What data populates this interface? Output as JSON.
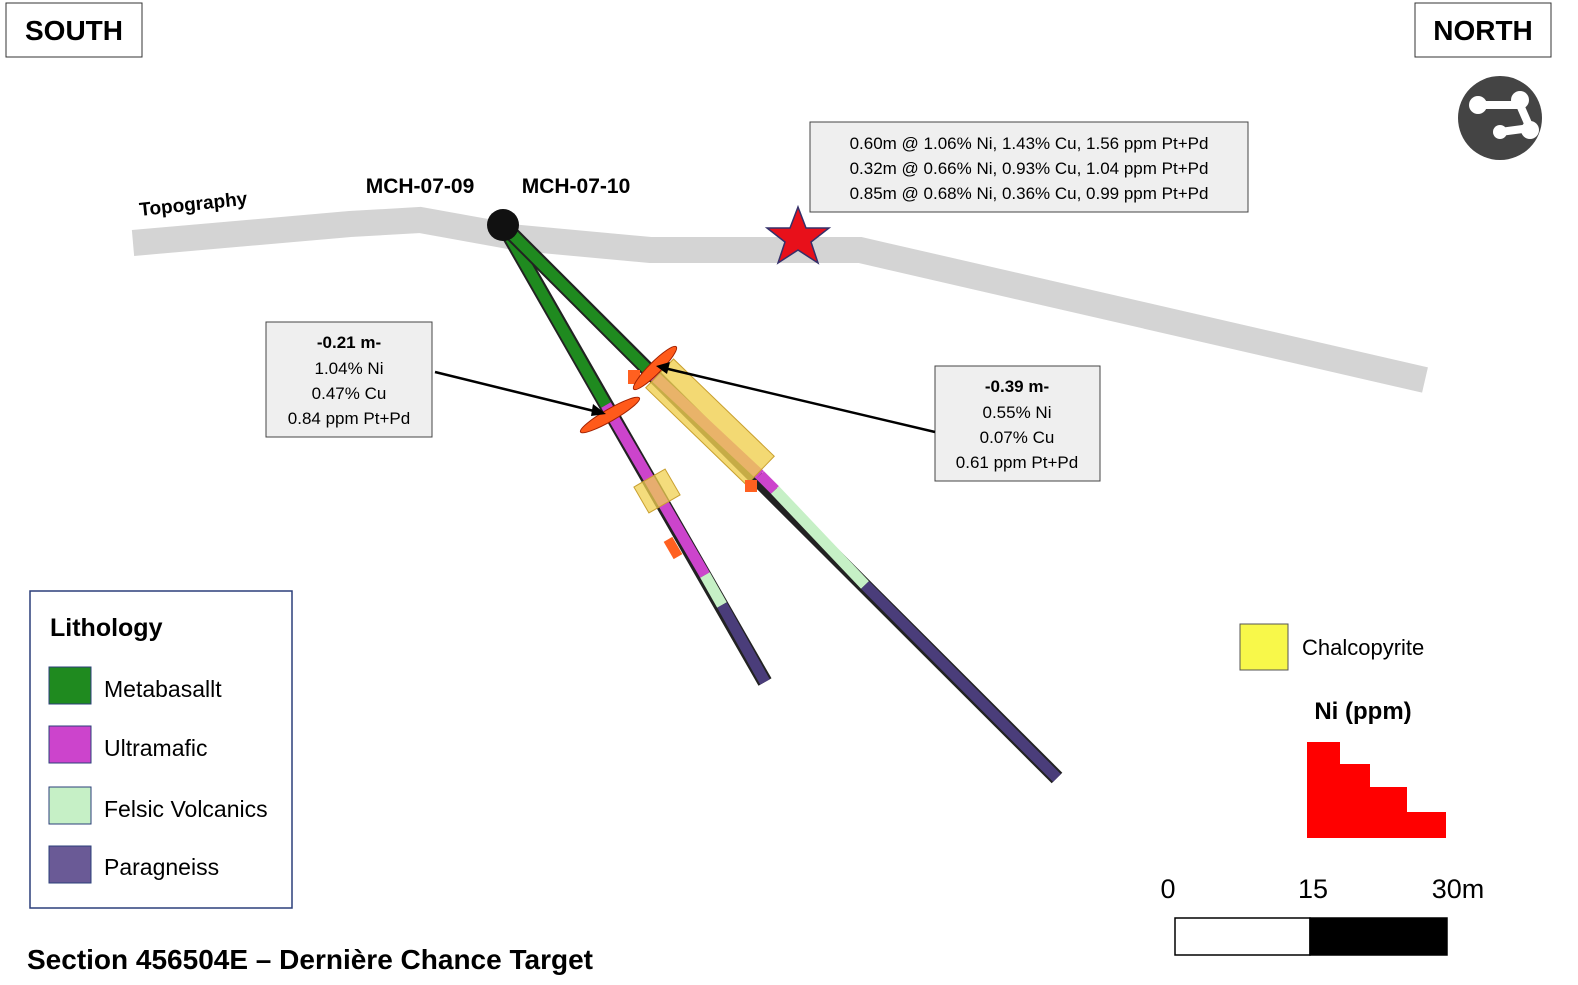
{
  "header": {
    "south": "SOUTH",
    "north": "NORTH"
  },
  "topography": "Topography",
  "holes": [
    "MCH-07-09",
    "MCH-07-10"
  ],
  "intercept_summary": [
    "0.60m @ 1.06% Ni, 1.43% Cu, 1.56 ppm Pt+Pd",
    "0.32m @ 0.66% Ni, 0.93% Cu, 1.04 ppm Pt+Pd",
    "0.85m @ 0.68% Ni, 0.36% Cu, 0.99 ppm Pt+Pd"
  ],
  "callouts": [
    {
      "title": "-0.21 m-",
      "lines": [
        "1.04% Ni",
        "0.47% Cu",
        "0.84 ppm Pt+Pd"
      ]
    },
    {
      "title": "-0.39 m-",
      "lines": [
        "0.55% Ni",
        "0.07% Cu",
        "0.61 ppm Pt+Pd"
      ]
    }
  ],
  "legend": {
    "title": "Lithology",
    "items": [
      "Metabasallt",
      "Ultramafic",
      "Felsic Volcanics",
      "Paragneiss"
    ]
  },
  "chalcopyrite": "Chalcopyrite",
  "ni_legend": "Ni (ppm)",
  "scale_bar": [
    "0",
    "15",
    "30m"
  ],
  "footer": {
    "title": "Section 456504E – Dernière Chance Target"
  }
}
